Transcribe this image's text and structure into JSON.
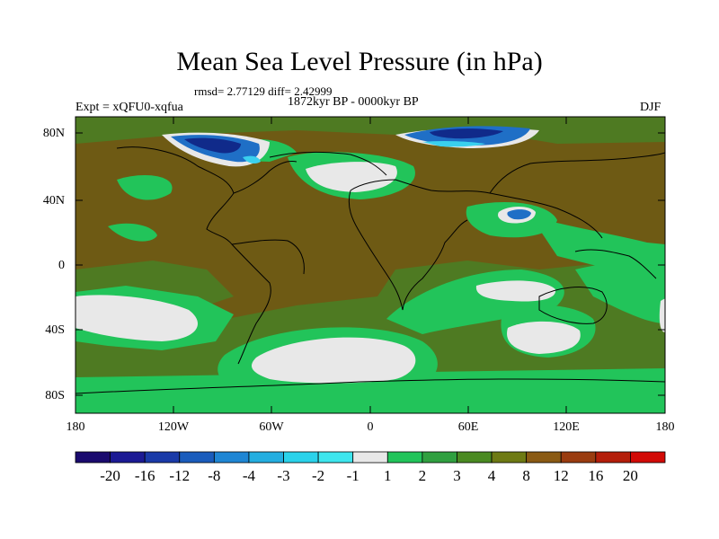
{
  "title": "Mean Sea Level Pressure (in hPa)",
  "stats": "rmsd= 2.77129 diff= 2.42999",
  "period": "1872kyr BP - 0000kyr BP",
  "expt": "Expt = xQFU0-xqfua",
  "season": "DJF",
  "lat_labels": [
    "80N",
    "40N",
    "0",
    "40S",
    "80S"
  ],
  "lon_labels": [
    "180",
    "120W",
    "60W",
    "0",
    "60E",
    "120E",
    "180"
  ],
  "colorbar": {
    "labels": [
      "-20",
      "-16",
      "-12",
      "-8",
      "-4",
      "-3",
      "-2",
      "-1",
      "1",
      "2",
      "3",
      "4",
      "8",
      "12",
      "16",
      "20"
    ],
    "colors": [
      "#1a0a6e",
      "#1c1a94",
      "#1a3aa8",
      "#1a5cbc",
      "#1f86d4",
      "#24aee0",
      "#2ad2ea",
      "#3ee6ee",
      "#e8e8e8",
      "#22c45a",
      "#30a040",
      "#4a8a22",
      "#6e7a14",
      "#8a5a14",
      "#9a3c10",
      "#b41e0a",
      "#d20a06"
    ]
  },
  "map_colors": {
    "brown": "#6e5a14",
    "olive": "#4e7a22",
    "green": "#22c45a",
    "darkgreen": "#2f9e3a",
    "grey": "#e8e8e8",
    "blue": "#1f6fc6",
    "cyan": "#3ad0ee",
    "navy": "#102a8a"
  }
}
